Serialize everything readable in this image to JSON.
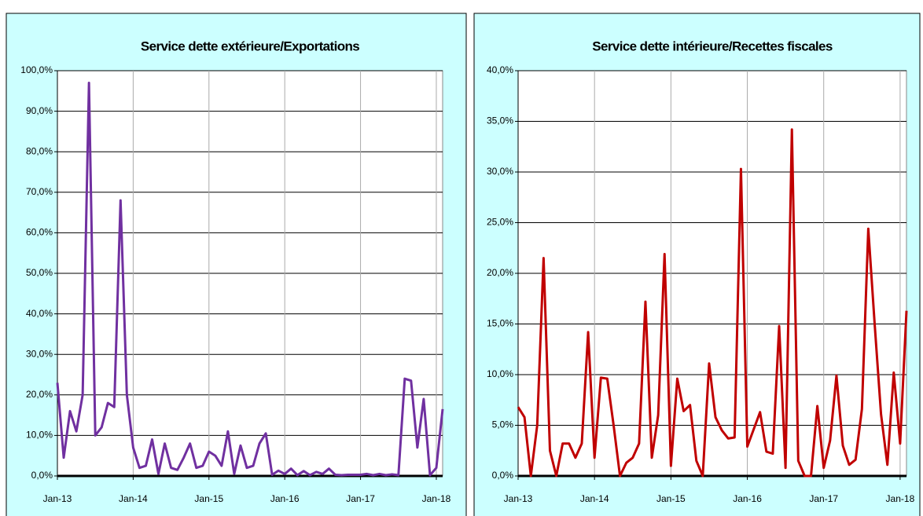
{
  "chart_data": [
    {
      "type": "line",
      "title": "Service dette extérieure/Exportations",
      "color": "#7030a0",
      "x": [
        "2013-01",
        "2013-02",
        "2013-03",
        "2013-04",
        "2013-05",
        "2013-06",
        "2013-07",
        "2013-08",
        "2013-09",
        "2013-10",
        "2013-11",
        "2013-12",
        "2014-01",
        "2014-02",
        "2014-03",
        "2014-04",
        "2014-05",
        "2014-06",
        "2014-07",
        "2014-08",
        "2014-09",
        "2014-10",
        "2014-11",
        "2014-12",
        "2015-01",
        "2015-02",
        "2015-03",
        "2015-04",
        "2015-05",
        "2015-06",
        "2015-07",
        "2015-08",
        "2015-09",
        "2015-10",
        "2015-11",
        "2015-12",
        "2016-01",
        "2016-02",
        "2016-03",
        "2016-04",
        "2016-05",
        "2016-06",
        "2016-07",
        "2016-08",
        "2016-09",
        "2016-10",
        "2016-11",
        "2016-12",
        "2017-01",
        "2017-02",
        "2017-03",
        "2017-04",
        "2017-05",
        "2017-06",
        "2017-07",
        "2017-08",
        "2017-09",
        "2017-10",
        "2017-11",
        "2017-12",
        "2018-01",
        "2018-02"
      ],
      "values": [
        23,
        4.5,
        16,
        11,
        20,
        97,
        10,
        12,
        18,
        17,
        68,
        20,
        7,
        2,
        2.5,
        9,
        0.5,
        8,
        2,
        1.5,
        4.5,
        8,
        2,
        2.5,
        6,
        5,
        2.5,
        11,
        0.5,
        7.5,
        2,
        2.5,
        8,
        10.5,
        0.3,
        1.3,
        0.5,
        1.8,
        0.2,
        1.2,
        0.2,
        1,
        0.5,
        1.8,
        0.3,
        0.2,
        0.3,
        0.3,
        0.3,
        0.5,
        0.2,
        0.5,
        0.2,
        0.4,
        0.2,
        24,
        23.5,
        7,
        19,
        0.2,
        2,
        16.5
      ],
      "xlim": [
        "2013-01",
        "2018-02"
      ],
      "xticks": [
        {
          "value": "2013-01",
          "label": "Jan-13"
        },
        {
          "value": "2014-01",
          "label": "Jan-14"
        },
        {
          "value": "2015-01",
          "label": "Jan-15"
        },
        {
          "value": "2016-01",
          "label": "Jan-16"
        },
        {
          "value": "2017-01",
          "label": "Jan-17"
        },
        {
          "value": "2018-01",
          "label": "Jan-18"
        }
      ],
      "ylim": [
        0,
        100
      ],
      "yticks": [
        {
          "value": 0,
          "label": "0,0%"
        },
        {
          "value": 10,
          "label": "10,0%"
        },
        {
          "value": 20,
          "label": "20,0%"
        },
        {
          "value": 30,
          "label": "30,0%"
        },
        {
          "value": 40,
          "label": "40,0%"
        },
        {
          "value": 50,
          "label": "50,0%"
        },
        {
          "value": 60,
          "label": "60,0%"
        },
        {
          "value": 70,
          "label": "70,0%"
        },
        {
          "value": 80,
          "label": "80,0%"
        },
        {
          "value": 90,
          "label": "90,0%"
        },
        {
          "value": 100,
          "label": "100,0%"
        }
      ],
      "grid": true
    },
    {
      "type": "line",
      "title": "Service dette intérieure/Recettes fiscales",
      "color": "#c00000",
      "x": [
        "2013-01",
        "2013-02",
        "2013-03",
        "2013-04",
        "2013-05",
        "2013-06",
        "2013-07",
        "2013-08",
        "2013-09",
        "2013-10",
        "2013-11",
        "2013-12",
        "2014-01",
        "2014-02",
        "2014-03",
        "2014-04",
        "2014-05",
        "2014-06",
        "2014-07",
        "2014-08",
        "2014-09",
        "2014-10",
        "2014-11",
        "2014-12",
        "2015-01",
        "2015-02",
        "2015-03",
        "2015-04",
        "2015-05",
        "2015-06",
        "2015-07",
        "2015-08",
        "2015-09",
        "2015-10",
        "2015-11",
        "2015-12",
        "2016-01",
        "2016-02",
        "2016-03",
        "2016-04",
        "2016-05",
        "2016-06",
        "2016-07",
        "2016-08",
        "2016-09",
        "2016-10",
        "2016-11",
        "2016-12",
        "2017-01",
        "2017-02",
        "2017-03",
        "2017-04",
        "2017-05",
        "2017-06",
        "2017-07",
        "2017-08",
        "2017-09",
        "2017-10",
        "2017-11",
        "2017-12",
        "2018-01",
        "2018-02"
      ],
      "values": [
        6.8,
        5.8,
        0,
        5,
        21.5,
        2.5,
        0,
        3.2,
        3.2,
        1.8,
        3.2,
        14.2,
        1.8,
        9.7,
        9.6,
        5,
        0,
        1.3,
        1.8,
        3.2,
        17.2,
        1.8,
        6,
        21.9,
        1,
        9.6,
        6.4,
        7,
        1.5,
        0,
        11.1,
        5.8,
        4.5,
        3.7,
        3.8,
        30.3,
        2.9,
        4.6,
        6.3,
        2.4,
        2.2,
        14.8,
        0.8,
        34.2,
        1.5,
        0,
        0,
        6.9,
        0.8,
        3.5,
        9.9,
        3,
        1.1,
        1.6,
        6.6,
        24.4,
        15,
        6.1,
        1.1,
        10.2,
        3.2,
        16.3
      ],
      "xlim": [
        "2013-01",
        "2018-02"
      ],
      "xticks": [
        {
          "value": "2013-01",
          "label": "Jan-13"
        },
        {
          "value": "2014-01",
          "label": "Jan-14"
        },
        {
          "value": "2015-01",
          "label": "Jan-15"
        },
        {
          "value": "2016-01",
          "label": "Jan-16"
        },
        {
          "value": "2017-01",
          "label": "Jan-17"
        },
        {
          "value": "2018-01",
          "label": "Jan-18"
        }
      ],
      "ylim": [
        0,
        40
      ],
      "yticks": [
        {
          "value": 0,
          "label": "0,0%"
        },
        {
          "value": 5,
          "label": "5,0%"
        },
        {
          "value": 10,
          "label": "10,0%"
        },
        {
          "value": 15,
          "label": "15,0%"
        },
        {
          "value": 20,
          "label": "20,0%"
        },
        {
          "value": 25,
          "label": "25,0%"
        },
        {
          "value": 30,
          "label": "30,0%"
        },
        {
          "value": 35,
          "label": "35,0%"
        },
        {
          "value": 40,
          "label": "40,0%"
        }
      ],
      "grid": true
    }
  ]
}
